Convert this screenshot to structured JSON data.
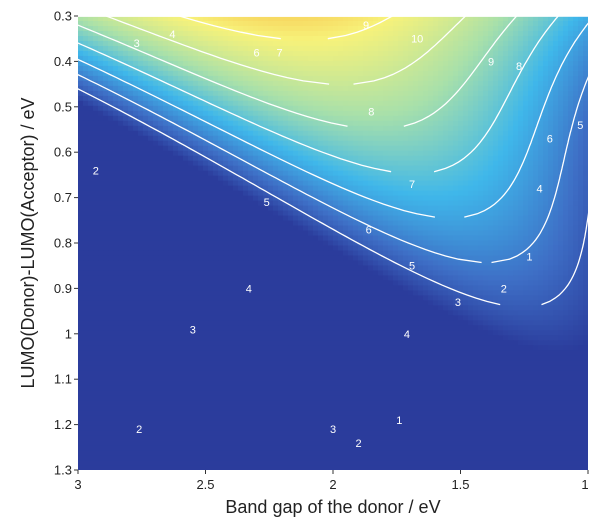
{
  "chart_data": {
    "type": "heatmap",
    "title": "",
    "xlabel": "Band gap of the donor / eV",
    "ylabel": "LUMO(Donor)-LUMO(Acceptor) / eV",
    "xlim": [
      3.0,
      1.0
    ],
    "ylim": [
      0.3,
      1.3
    ],
    "x_reversed": true,
    "y_reversed": true,
    "x_ticks": [
      {
        "value": 3.0,
        "label": "3"
      },
      {
        "value": 2.5,
        "label": "2.5"
      },
      {
        "value": 2.0,
        "label": "2"
      },
      {
        "value": 1.5,
        "label": "1.5"
      },
      {
        "value": 1.0,
        "label": "1"
      }
    ],
    "y_ticks": [
      {
        "value": 0.3,
        "label": "0.3"
      },
      {
        "value": 0.4,
        "label": "0.4"
      },
      {
        "value": 0.5,
        "label": "0.5"
      },
      {
        "value": 0.6,
        "label": "0.6"
      },
      {
        "value": 0.7,
        "label": "0.7"
      },
      {
        "value": 0.8,
        "label": "0.8"
      },
      {
        "value": 0.9,
        "label": "0.9"
      },
      {
        "value": 1.0,
        "label": "1"
      },
      {
        "value": 1.1,
        "label": "1.1"
      },
      {
        "value": 1.2,
        "label": "1.2"
      },
      {
        "value": 1.3,
        "label": "1.3"
      }
    ],
    "colorscale": [
      "#2b3c9c",
      "#3e6fc6",
      "#3fb7ea",
      "#a8e0aa",
      "#f7f27a",
      "#f6a12c",
      "#e8231c",
      "#3a0a0a"
    ],
    "contour_line_color": "#ffffff",
    "contour_labels": [
      {
        "text": "1",
        "x": 1.23,
        "y": 0.83
      },
      {
        "text": "1",
        "x": 1.74,
        "y": 1.19
      },
      {
        "text": "2",
        "x": 2.93,
        "y": 0.64
      },
      {
        "text": "2",
        "x": 2.76,
        "y": 1.21
      },
      {
        "text": "2",
        "x": 1.33,
        "y": 0.9
      },
      {
        "text": "2",
        "x": 1.9,
        "y": 1.24
      },
      {
        "text": "3",
        "x": 2.77,
        "y": 0.36
      },
      {
        "text": "3",
        "x": 2.55,
        "y": 0.99
      },
      {
        "text": "3",
        "x": 2.0,
        "y": 1.21
      },
      {
        "text": "3",
        "x": 1.51,
        "y": 0.93
      },
      {
        "text": "4",
        "x": 2.63,
        "y": 0.34
      },
      {
        "text": "4",
        "x": 2.33,
        "y": 0.9
      },
      {
        "text": "4",
        "x": 1.71,
        "y": 1.0
      },
      {
        "text": "4",
        "x": 1.19,
        "y": 0.68
      },
      {
        "text": "5",
        "x": 2.26,
        "y": 0.71
      },
      {
        "text": "5",
        "x": 1.69,
        "y": 0.85
      },
      {
        "text": "5",
        "x": 1.03,
        "y": 0.54
      },
      {
        "text": "6",
        "x": 2.3,
        "y": 0.38
      },
      {
        "text": "6",
        "x": 1.86,
        "y": 0.77
      },
      {
        "text": "6",
        "x": 1.15,
        "y": 0.57
      },
      {
        "text": "7",
        "x": 2.21,
        "y": 0.38
      },
      {
        "text": "7",
        "x": 1.69,
        "y": 0.67
      },
      {
        "text": "8",
        "x": 1.85,
        "y": 0.51
      },
      {
        "text": "8",
        "x": 1.27,
        "y": 0.41
      },
      {
        "text": "9",
        "x": 1.87,
        "y": 0.32
      },
      {
        "text": "9",
        "x": 1.38,
        "y": 0.4
      },
      {
        "text": "10",
        "x": 1.67,
        "y": 0.35
      }
    ]
  }
}
